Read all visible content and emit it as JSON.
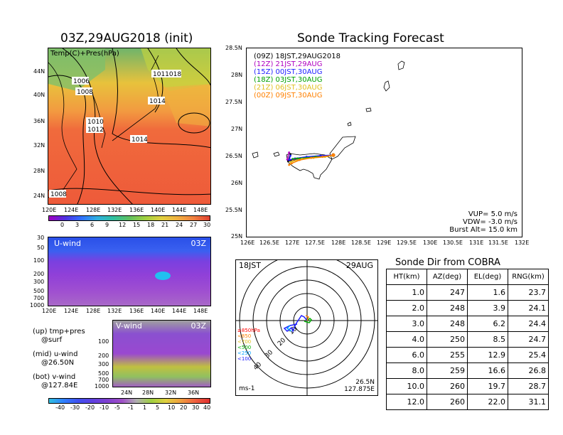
{
  "left": {
    "map_title": "03Z,29AUG2018 (init)",
    "map_label": "Temp(C)+Pres(hPa)",
    "lat_ticks": [
      "44N",
      "40N",
      "36N",
      "32N",
      "28N",
      "24N"
    ],
    "lon_ticks": [
      "120E",
      "124E",
      "128E",
      "132E",
      "136E",
      "140E",
      "144E",
      "148E"
    ],
    "isobar_labels": [
      "1006",
      "1008",
      "1010",
      "1012",
      "1014",
      "1014",
      "1011018",
      "1008"
    ],
    "temp_colorbar": [
      "0",
      "3",
      "6",
      "9",
      "12",
      "15",
      "18",
      "21",
      "24",
      "27",
      "30"
    ],
    "uwind_label": "U-wind",
    "uwind_time": "03Z",
    "pressure_ticks": [
      "30",
      "50",
      "100",
      "200",
      "300",
      "500",
      "700",
      "1000"
    ],
    "uwind_lon_ticks": [
      "120E",
      "124E",
      "128E",
      "132E",
      "136E",
      "140E",
      "144E",
      "148E"
    ],
    "vwind_label": "V-wind",
    "vwind_time": "03Z",
    "vwind_pressure_ticks": [
      "100",
      "200",
      "300",
      "500",
      "700",
      "1000"
    ],
    "vwind_lat_ticks": [
      "24N",
      "28N",
      "32N",
      "36N"
    ],
    "notes": [
      "(up) tmp+pres",
      "@surf",
      "(mid) u-wind",
      "@26.50N",
      "(bot) v-wind",
      "@127.84E"
    ],
    "wind_colorbar": [
      "-40",
      "-30",
      "-20",
      "-10",
      "-5",
      "-1",
      "1",
      "5",
      "10",
      "20",
      "30",
      "40"
    ]
  },
  "tracking": {
    "title": "Sonde Tracking Forecast",
    "lat_ticks": [
      "28.5N",
      "28N",
      "27.5N",
      "27N",
      "26.5N",
      "26N",
      "25.5N",
      "25N"
    ],
    "lon_ticks": [
      "126E",
      "126.5E",
      "127E",
      "127.5E",
      "128E",
      "128.5E",
      "129E",
      "129.5E",
      "130E",
      "130.5E",
      "131E",
      "131.5E",
      "132E"
    ],
    "legend": [
      {
        "text": "(09Z) 18JST,29AUG2018",
        "color": "#000000"
      },
      {
        "text": "(12Z) 21JST,29AUG",
        "color": "#b000c0"
      },
      {
        "text": "(15Z) 00JST,30AUG",
        "color": "#2020ff"
      },
      {
        "text": "(18Z) 03JST,30AUG",
        "color": "#00a000"
      },
      {
        "text": "(21Z) 06JST,30AUG",
        "color": "#e0c020"
      },
      {
        "text": "(00Z) 09JST,30AUG",
        "color": "#ff8000"
      }
    ],
    "params": [
      "VUP= 5.0 m/s",
      "VDW= -3.0 m/s",
      "Burst Alt= 15.0 km"
    ]
  },
  "polar": {
    "time_label": "18JST",
    "date_label": "29AUG",
    "ring_labels": [
      "10",
      "20",
      "30",
      "40"
    ],
    "unit": "ms-1",
    "lat": "26.5N",
    "lon": "127.875E",
    "pressure_legend": [
      {
        "text": "≥850hPa",
        "color": "#ff0000"
      },
      {
        "text": "<850",
        "color": "#ff8000"
      },
      {
        "text": "<700",
        "color": "#e0c020"
      },
      {
        "text": "<500",
        "color": "#00b000"
      },
      {
        "text": "<250",
        "color": "#00a0ff"
      },
      {
        "text": "<100",
        "color": "#2020ff"
      }
    ]
  },
  "sonde_dir": {
    "title": "Sonde Dir from COBRA",
    "headers": [
      "HT(km)",
      "AZ(deg)",
      "EL(deg)",
      "RNG(km)"
    ],
    "rows": [
      [
        "1.0",
        "247",
        "1.6",
        "23.7"
      ],
      [
        "2.0",
        "248",
        "3.9",
        "24.1"
      ],
      [
        "3.0",
        "248",
        "6.2",
        "24.4"
      ],
      [
        "4.0",
        "250",
        "8.5",
        "24.7"
      ],
      [
        "6.0",
        "255",
        "12.9",
        "25.4"
      ],
      [
        "8.0",
        "259",
        "16.6",
        "26.8"
      ],
      [
        "10.0",
        "260",
        "19.7",
        "28.7"
      ],
      [
        "12.0",
        "260",
        "22.0",
        "31.1"
      ]
    ]
  },
  "chart_data": [
    {
      "type": "heatmap",
      "title": "03Z,29AUG2018 (init)",
      "subtitle": "Temp(C)+Pres(hPa)",
      "x_ticks": [
        "120E",
        "124E",
        "128E",
        "132E",
        "136E",
        "140E",
        "144E",
        "148E"
      ],
      "y_ticks": [
        "44N",
        "40N",
        "36N",
        "32N",
        "28N",
        "24N"
      ],
      "colorbar": [
        0,
        3,
        6,
        9,
        12,
        15,
        18,
        21,
        24,
        27,
        30
      ],
      "contour_labels": [
        1006,
        1008,
        1010,
        1012,
        1014,
        1014,
        1008
      ]
    },
    {
      "type": "line",
      "title": "Sonde Tracking Forecast",
      "xlim": [
        126,
        132
      ],
      "ylim": [
        25,
        28.5
      ],
      "series": [
        {
          "name": "(09Z) 18JST,29AUG2018",
          "color": "#000000",
          "x": [
            127.88,
            127.6,
            127.3,
            127.05,
            126.9,
            126.95
          ],
          "y": [
            26.53,
            26.5,
            26.48,
            26.45,
            26.42,
            26.55
          ]
        },
        {
          "name": "(12Z) 21JST,29AUG",
          "color": "#b000c0",
          "x": [
            127.88,
            127.55,
            127.25,
            127.0,
            126.88,
            126.92
          ],
          "y": [
            26.53,
            26.5,
            26.47,
            26.45,
            26.45,
            26.58
          ]
        },
        {
          "name": "(15Z) 00JST,30AUG",
          "color": "#2020ff",
          "x": [
            127.88,
            127.6,
            127.3,
            127.05,
            126.92,
            126.95
          ],
          "y": [
            26.53,
            26.52,
            26.5,
            26.47,
            26.44,
            26.52
          ]
        },
        {
          "name": "(18Z) 03JST,30AUG",
          "color": "#00a000",
          "x": [
            127.88,
            127.7,
            127.5,
            127.3,
            127.1,
            127.0
          ],
          "y": [
            26.53,
            26.5,
            26.5,
            26.48,
            26.47,
            26.46
          ]
        },
        {
          "name": "(21Z) 06JST,30AUG",
          "color": "#e0c020",
          "x": [
            127.88,
            127.7,
            127.45,
            127.2,
            127.0,
            126.95
          ],
          "y": [
            26.53,
            26.5,
            26.48,
            26.46,
            26.42,
            26.4
          ]
        },
        {
          "name": "(00Z) 09JST,30AUG",
          "color": "#ff8000",
          "x": [
            127.88,
            127.65,
            127.4,
            127.15,
            126.98,
            126.92
          ],
          "y": [
            26.53,
            26.5,
            26.48,
            26.44,
            26.38,
            26.35
          ]
        }
      ]
    },
    {
      "type": "table",
      "title": "Sonde Dir from COBRA",
      "columns": [
        "HT(km)",
        "AZ(deg)",
        "EL(deg)",
        "RNG(km)"
      ],
      "rows": [
        [
          1.0,
          247,
          1.6,
          23.7
        ],
        [
          2.0,
          248,
          3.9,
          24.1
        ],
        [
          3.0,
          248,
          6.2,
          24.4
        ],
        [
          4.0,
          250,
          8.5,
          24.7
        ],
        [
          6.0,
          255,
          12.9,
          25.4
        ],
        [
          8.0,
          259,
          16.6,
          26.8
        ],
        [
          10.0,
          260,
          19.7,
          28.7
        ],
        [
          12.0,
          260,
          22.0,
          31.1
        ]
      ]
    }
  ]
}
